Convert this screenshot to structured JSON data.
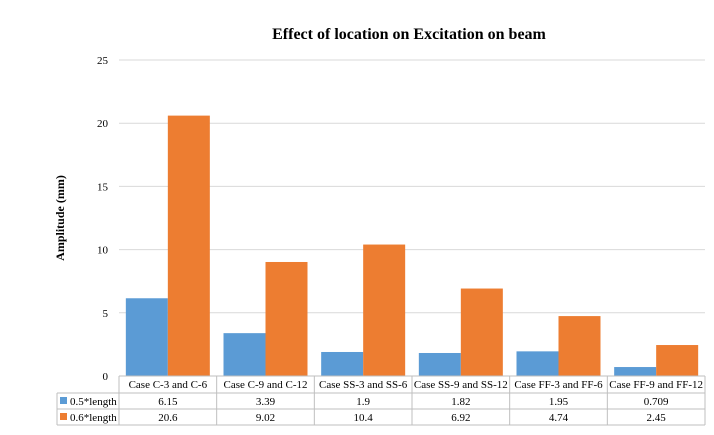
{
  "chart_data": {
    "type": "bar",
    "title": "Effect of location on Excitation on beam",
    "xlabel": "",
    "ylabel": "Amplitude (mm)",
    "ylim": [
      0,
      25
    ],
    "yticks": [
      "0",
      "5",
      "10",
      "15",
      "20",
      "25"
    ],
    "grid": true,
    "legend": "bottom (data table)",
    "categories": [
      "Case C-3 and C-6",
      "Case C-9 and C-12",
      "Case SS-3 and SS-6",
      "Case SS-9 and SS-12",
      "Case FF-3 and FF-6",
      "Case FF-9 and FF-12"
    ],
    "series": [
      {
        "name": "0.5*length",
        "color": "#5b9bd5",
        "values": [
          6.15,
          3.39,
          1.9,
          1.82,
          1.95,
          0.709
        ],
        "labels": [
          "6.15",
          "3.39",
          "1.9",
          "1.82",
          "1.95",
          "0.709"
        ]
      },
      {
        "name": "0.6*length",
        "color": "#ed7d31",
        "values": [
          20.6,
          9.02,
          10.4,
          6.92,
          4.74,
          2.45
        ],
        "labels": [
          "20.6",
          "9.02",
          "10.4",
          "6.92",
          "4.74",
          "2.45"
        ]
      }
    ]
  }
}
